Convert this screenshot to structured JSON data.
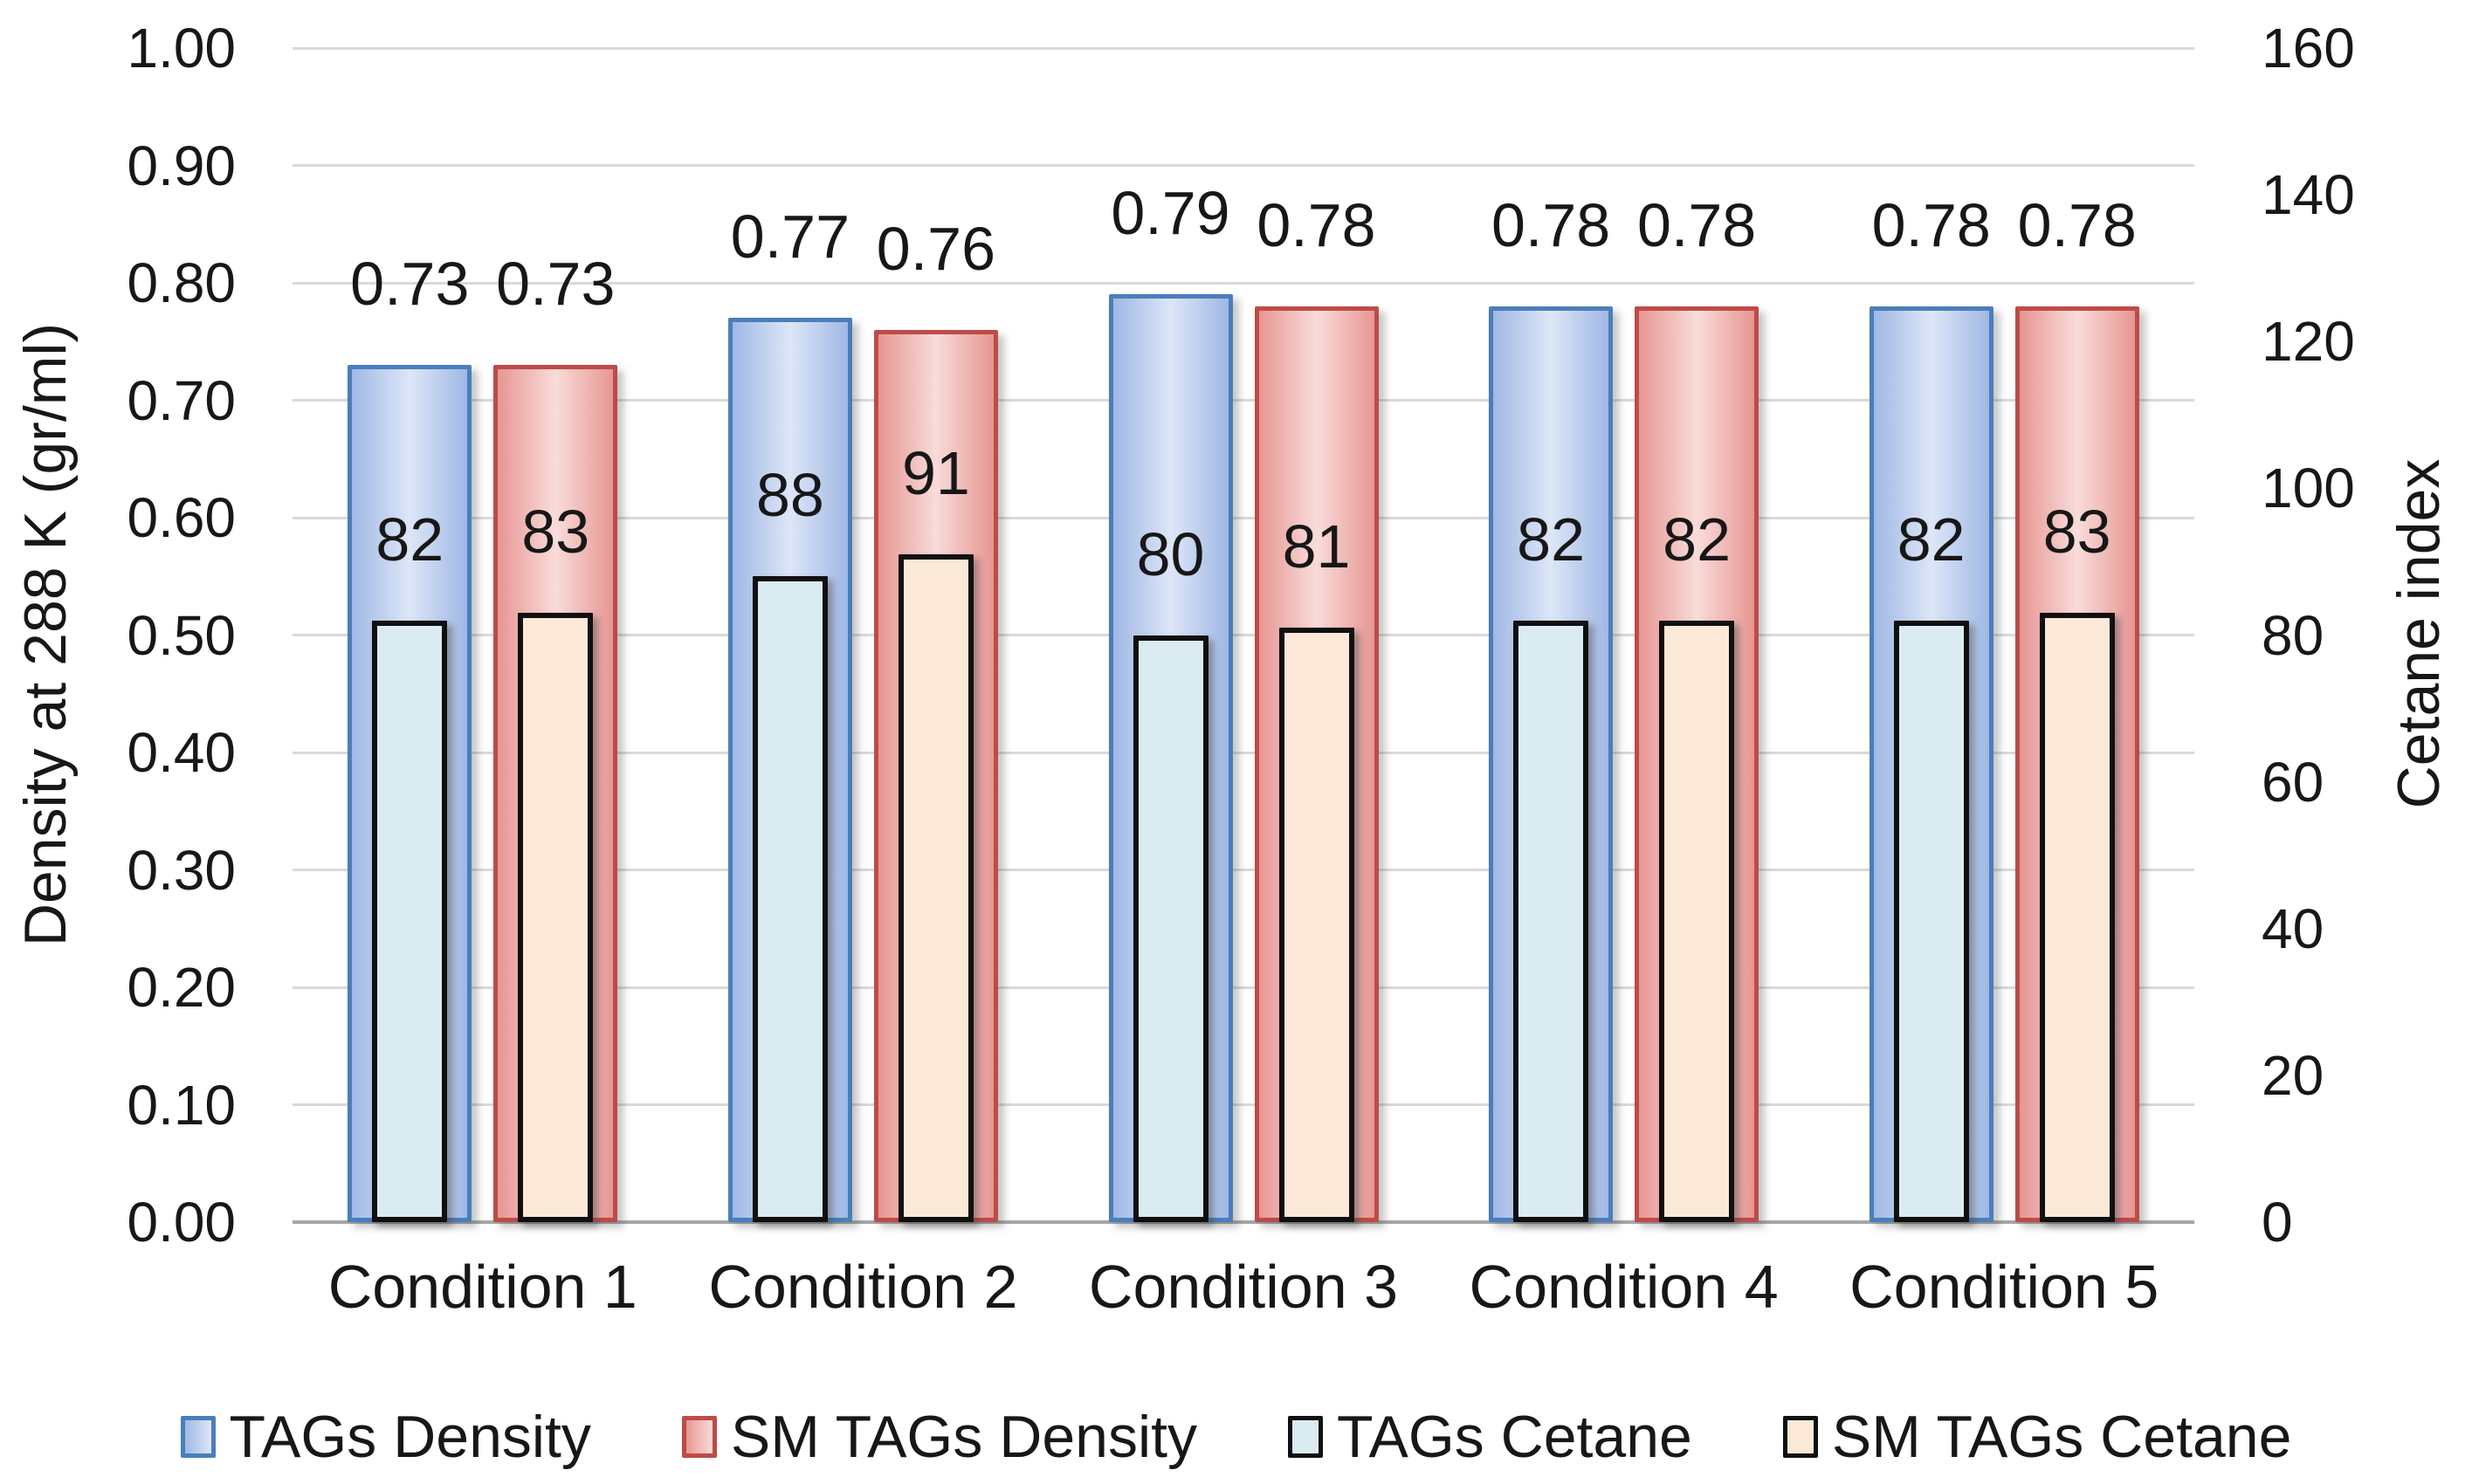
{
  "chart_data": {
    "type": "bar",
    "title": "",
    "categories": [
      "Condition 1",
      "Condition 2",
      "Condition 3",
      "Condition 4",
      "Condition 5"
    ],
    "series": [
      {
        "name": "TAGs Density",
        "axis": "left",
        "values": [
          0.73,
          0.77,
          0.79,
          0.78,
          0.78
        ],
        "labels": [
          "0.73",
          "0.77",
          "0.79",
          "0.78",
          "0.78"
        ]
      },
      {
        "name": "SM TAGs Density",
        "axis": "left",
        "values": [
          0.73,
          0.76,
          0.78,
          0.78,
          0.78
        ],
        "labels": [
          "0.73",
          "0.76",
          "0.78",
          "0.78",
          "0.78"
        ]
      },
      {
        "name": "TAGs Cetane",
        "axis": "right",
        "values": [
          82,
          88,
          80,
          82,
          82
        ],
        "labels": [
          "82",
          "88",
          "80",
          "82",
          "82"
        ]
      },
      {
        "name": "SM TAGs Cetane",
        "axis": "right",
        "values": [
          83,
          91,
          81,
          82,
          83
        ],
        "labels": [
          "83",
          "91",
          "81",
          "82",
          "83"
        ]
      }
    ],
    "left_axis": {
      "title": "Density at 288 K (gr/ml)",
      "min": 0,
      "max": 1.0,
      "tick_labels": [
        "1.00",
        "0.90",
        "0.80",
        "0.70",
        "0.60",
        "0.50",
        "0.40",
        "0.30",
        "0.20",
        "0.10",
        "0.00"
      ]
    },
    "right_axis": {
      "title": "Cetane index",
      "min": 0,
      "max": 160,
      "tick_labels": [
        "160",
        "140",
        "120",
        "100",
        "80",
        "60",
        "40",
        "20",
        "0"
      ]
    },
    "grid": true,
    "legend_position": "bottom",
    "legend": [
      "TAGs Density",
      "SM TAGs Density",
      "TAGs Cetane",
      "SM TAGs Cetane"
    ]
  },
  "colors": {
    "tags_density_border": "#4a7ebb",
    "tags_density_edge": "#9fb8e4",
    "tags_density_center": "#dde6f7",
    "sm_density_border": "#be4b48",
    "sm_density_edge": "#e69692",
    "sm_density_center": "#f9dcda",
    "tags_cetane_border": "#101010",
    "tags_cetane_fill": "#daecf2",
    "sm_cetane_border": "#101010",
    "sm_cetane_fill": "#fce8d7",
    "gridline": "#d9d9d9",
    "axis_line": "#a6a6a6",
    "text": "#171717"
  }
}
